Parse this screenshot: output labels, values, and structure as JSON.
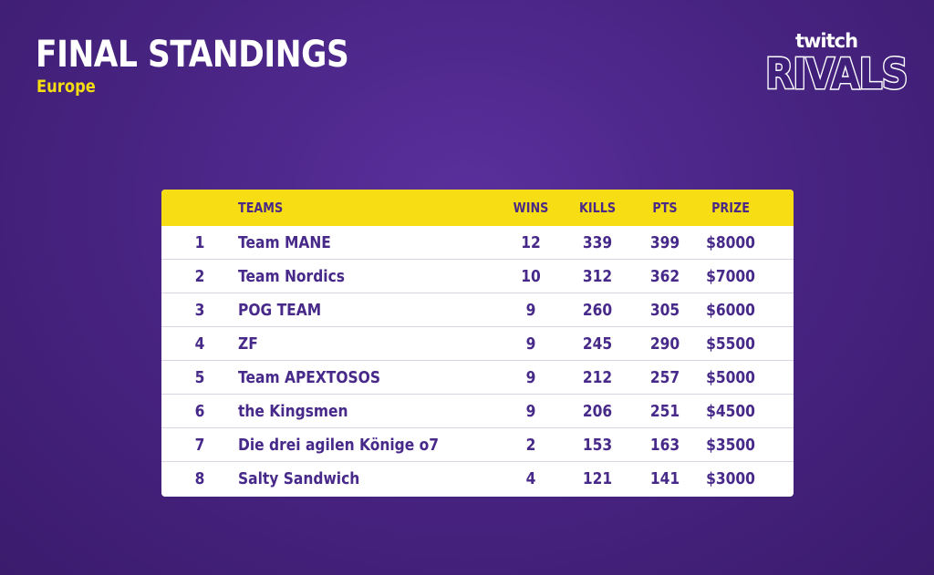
{
  "header": {
    "title": "FINAL STANDINGS",
    "region": "Europe"
  },
  "logo": {
    "line1": "twitch",
    "line2": "RIVALS"
  },
  "table": {
    "columns": {
      "rank": "",
      "team": "TEAMS",
      "wins": "WINS",
      "kills": "KILLS",
      "pts": "PTS",
      "prize": "PRIZE"
    },
    "rows": [
      {
        "rank": "1",
        "team": "Team MANE",
        "wins": "12",
        "kills": "339",
        "pts": "399",
        "prize": "$8000"
      },
      {
        "rank": "2",
        "team": "Team Nordics",
        "wins": "10",
        "kills": "312",
        "pts": "362",
        "prize": "$7000"
      },
      {
        "rank": "3",
        "team": "POG TEAM",
        "wins": "9",
        "kills": "260",
        "pts": "305",
        "prize": "$6000"
      },
      {
        "rank": "4",
        "team": "ZF",
        "wins": "9",
        "kills": "245",
        "pts": "290",
        "prize": "$5500"
      },
      {
        "rank": "5",
        "team": "Team APEXTOSOS",
        "wins": "9",
        "kills": "212",
        "pts": "257",
        "prize": "$5000"
      },
      {
        "rank": "6",
        "team": "the Kingsmen",
        "wins": "9",
        "kills": "206",
        "pts": "251",
        "prize": "$4500"
      },
      {
        "rank": "7",
        "team": "Die drei agilen Könige o7",
        "wins": "2",
        "kills": "153",
        "pts": "163",
        "prize": "$3500"
      },
      {
        "rank": "8",
        "team": "Salty Sandwich",
        "wins": "4",
        "kills": "121",
        "pts": "141",
        "prize": "$3000"
      }
    ]
  },
  "colors": {
    "background": "#4a2585",
    "accent": "#f6dd14",
    "text_dark": "#47298a"
  }
}
